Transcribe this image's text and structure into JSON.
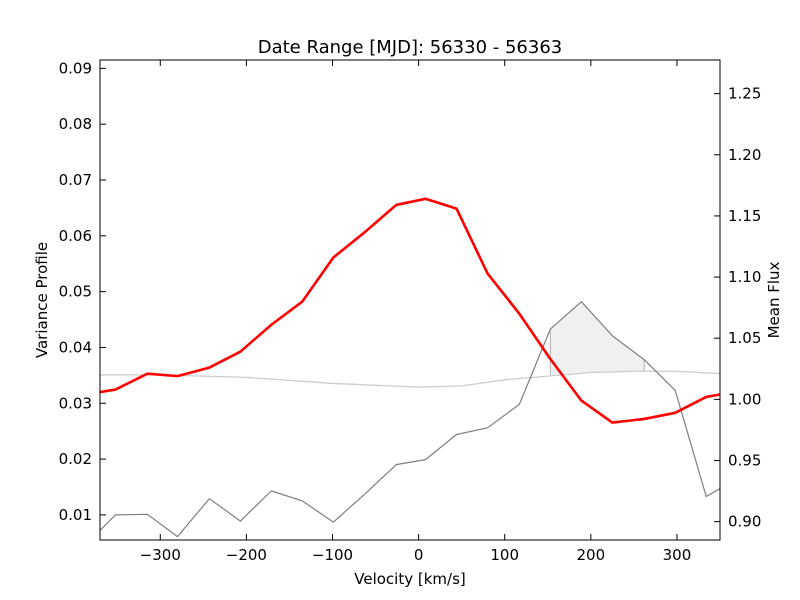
{
  "chart_data": {
    "type": "line",
    "title": "Date Range [MJD]: 56330 - 56363",
    "xlabel": "Velocity [km/s]",
    "ylabel_left": "Variance Profile",
    "ylabel_right": "Mean Flux",
    "xlim": [
      -370,
      350
    ],
    "ylim_left": [
      0.0055,
      0.0915
    ],
    "ylim_right": [
      0.885,
      1.2775
    ],
    "x_ticks": [
      -300,
      -200,
      -100,
      0,
      100,
      200,
      300
    ],
    "x_tick_labels": [
      "−300",
      "−200",
      "−100",
      "0",
      "100",
      "200",
      "300"
    ],
    "y_left_ticks": [
      0.01,
      0.02,
      0.03,
      0.04,
      0.05,
      0.06,
      0.07,
      0.08,
      0.09
    ],
    "y_left_tick_labels": [
      "0.01",
      "0.02",
      "0.03",
      "0.04",
      "0.05",
      "0.06",
      "0.07",
      "0.08",
      "0.09"
    ],
    "y_right_ticks": [
      0.9,
      0.95,
      1.0,
      1.05,
      1.1,
      1.15,
      1.2,
      1.25
    ],
    "y_right_tick_labels": [
      "0.90",
      "0.95",
      "1.00",
      "1.05",
      "1.10",
      "1.15",
      "1.20",
      "1.25"
    ],
    "grid": false,
    "series": [
      {
        "axis": "right",
        "color": "#ff0000",
        "x": [
          -370,
          -352,
          -315,
          -280,
          -243,
          -207,
          -171,
          -135,
          -99,
          -62,
          -26,
          8,
          44,
          80,
          117,
          153,
          189,
          225,
          262,
          298,
          334,
          350
        ],
        "y": [
          1.006,
          1.008,
          1.021,
          1.019,
          1.026,
          1.039,
          1.061,
          1.08,
          1.116,
          1.137,
          1.159,
          1.164,
          1.156,
          1.103,
          1.07,
          1.033,
          0.999,
          0.981,
          0.984,
          0.989,
          1.002,
          1.004
        ]
      },
      {
        "axis": "left",
        "color": "#7f7f7f",
        "x": [
          -370,
          -352,
          -315,
          -280,
          -243,
          -207,
          -171,
          -135,
          -99,
          -62,
          -26,
          8,
          44,
          80,
          117,
          153,
          189,
          225,
          262,
          298,
          334,
          350
        ],
        "y": [
          0.0072,
          0.01,
          0.0101,
          0.0061,
          0.0129,
          0.0089,
          0.0143,
          0.0125,
          0.0087,
          0.0138,
          0.019,
          0.0199,
          0.0244,
          0.0256,
          0.0298,
          0.0433,
          0.0482,
          0.0421,
          0.0378,
          0.0323,
          0.0133,
          0.0147
        ]
      },
      {
        "axis": "right",
        "color": "#cccccc",
        "x": [
          -370,
          -300,
          -200,
          -100,
          0,
          50,
          100,
          150,
          200,
          250,
          300,
          350
        ],
        "y": [
          1.02,
          1.02,
          1.018,
          1.013,
          1.01,
          1.011,
          1.016,
          1.019,
          1.022,
          1.023,
          1.023,
          1.021
        ]
      }
    ],
    "shaded_region": {
      "axis": "left",
      "color": "#f0f0f0",
      "edge": "#b0b0b0",
      "x": [
        153,
        189,
        225,
        262
      ],
      "upper": [
        0.0433,
        0.0482,
        0.0421,
        0.0378
      ],
      "lower": [
        0.0351,
        0.0356,
        0.0358,
        0.0358
      ]
    }
  }
}
